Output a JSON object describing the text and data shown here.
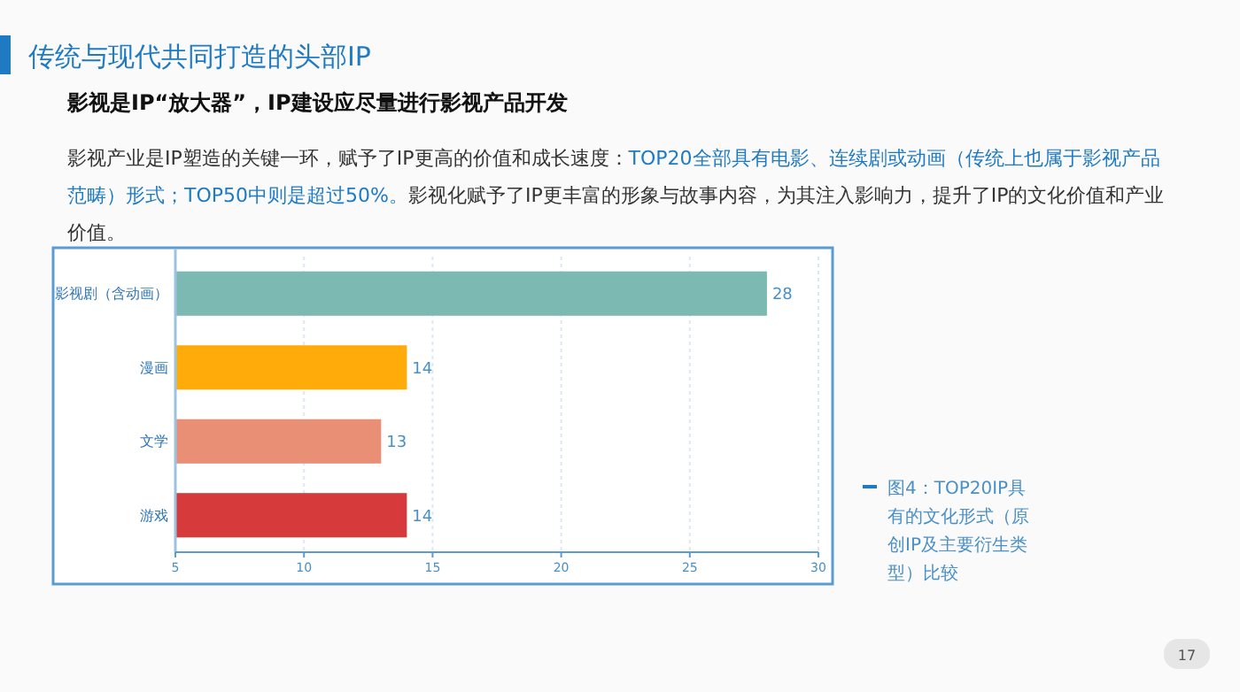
{
  "chart_data": {
    "type": "bar",
    "orientation": "horizontal",
    "title": "传统与现代共同打造的头部IP",
    "subtitle": "影视是IP“放大器”，IP建设应尽量进行影视产品开发",
    "categories": [
      "影视剧（含动画）",
      "漫画",
      "文学",
      "游戏"
    ],
    "values": [
      28,
      14,
      13,
      14
    ],
    "colors": [
      "#7db9b3",
      "#ffab0a",
      "#e98f76",
      "#d63a3a"
    ],
    "xlim": [
      5,
      30
    ],
    "xticks": [
      5,
      10,
      15,
      20,
      25,
      30
    ],
    "grid": "x",
    "data_labels": true,
    "annotations": [
      "影视产业是IP塑造的关键一环，赋予了IP更高的价值和成长速度：",
      "TOP20全部具有电影、连续剧或动画（传统上也属于影视产品范畴）形式；TOP50中则是超过50%。",
      "影视化赋予了IP更丰富的形象与故事内容，为其注入影响力，提升了IP的文化价值和产业价值。",
      "图4：TOP20IP具有的文化形式（原创IP及主要衍生类型）比较",
      "17"
    ]
  }
}
